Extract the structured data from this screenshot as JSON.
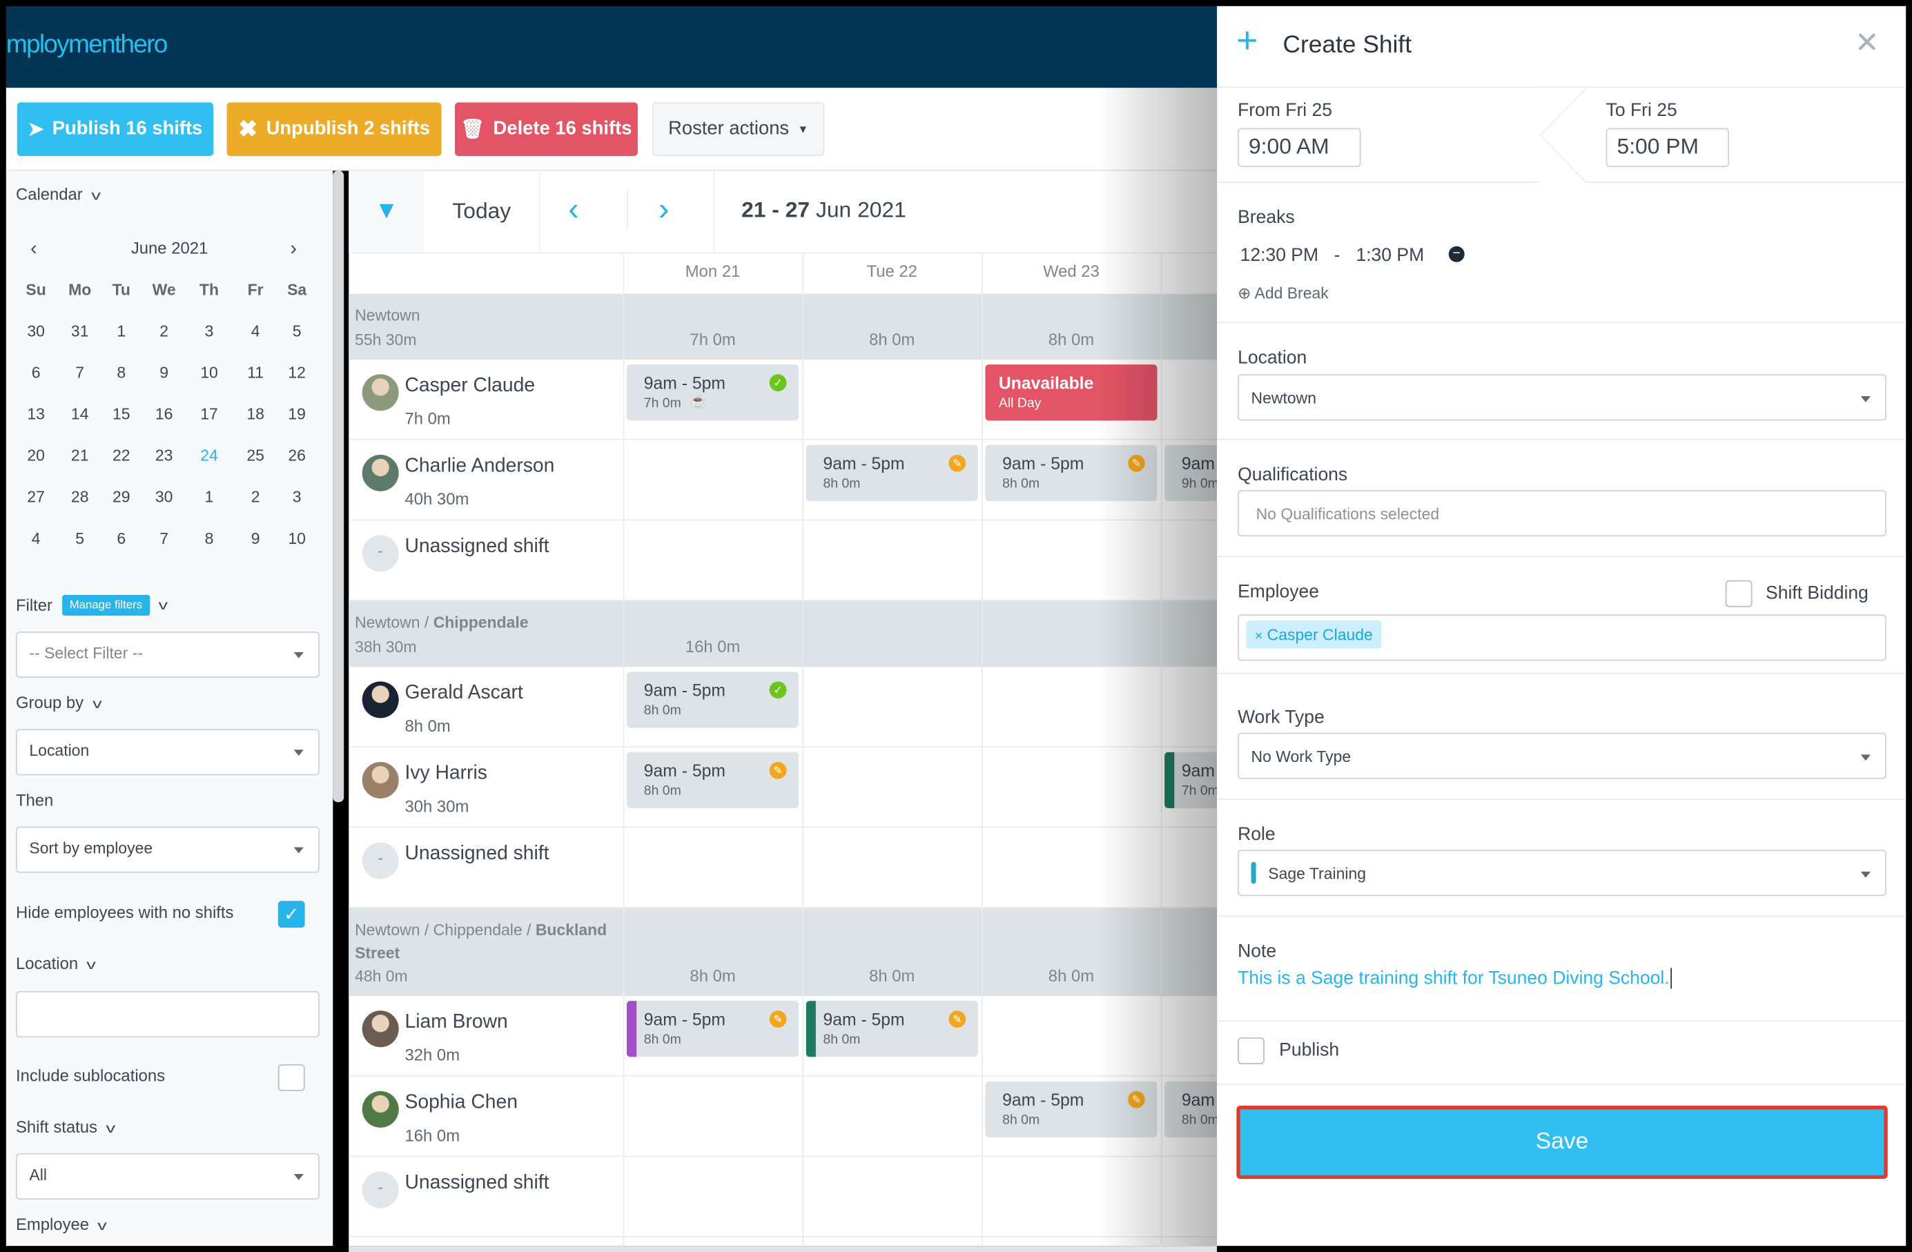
{
  "app": {
    "logo": "mploymenthero"
  },
  "toolbar": {
    "publish": "Publish 16 shifts",
    "unpublish": "Unpublish 2 shifts",
    "delete": "Delete 16 shifts",
    "roster_actions": "Roster actions"
  },
  "colors": {
    "publish": "#30bff0",
    "unpublish": "#ecac28",
    "delete": "#e35466",
    "header": "#023453",
    "accent": "#27b4ea",
    "published": "#6cc51c",
    "unpublished": "#f0a71e"
  },
  "sidebar": {
    "calendar_label": "Calendar",
    "month": "June 2021",
    "weekdays": [
      "Su",
      "Mo",
      "Tu",
      "We",
      "Th",
      "Fr",
      "Sa"
    ],
    "weeks": [
      [
        "30",
        "31",
        "1",
        "2",
        "3",
        "4",
        "5"
      ],
      [
        "6",
        "7",
        "8",
        "9",
        "10",
        "11",
        "12"
      ],
      [
        "13",
        "14",
        "15",
        "16",
        "17",
        "18",
        "19"
      ],
      [
        "20",
        "21",
        "22",
        "23",
        "24",
        "25",
        "26"
      ],
      [
        "27",
        "28",
        "29",
        "30",
        "1",
        "2",
        "3"
      ],
      [
        "4",
        "5",
        "6",
        "7",
        "8",
        "9",
        "10"
      ]
    ],
    "today": "24",
    "filter_label": "Filter",
    "manage_filters": "Manage filters",
    "filter_value": "-- Select Filter --",
    "group_by_label": "Group by",
    "group_by_value": "Location",
    "then_label": "Then",
    "then_value": "Sort by employee",
    "hide_label": "Hide employees with no shifts",
    "hide_checked": true,
    "location_label": "Location",
    "location_value": "",
    "include_sub_label": "Include sublocations",
    "include_sub_checked": false,
    "shift_status_label": "Shift status",
    "shift_status_value": "All",
    "employee_label": "Employee"
  },
  "roster": {
    "today": "Today",
    "range_bold": "21 - 27",
    "range_rest": "Jun 2021",
    "days": [
      "Mon 21",
      "Tue 22",
      "Wed 23"
    ],
    "groups": [
      {
        "path": "Newtown",
        "bold": "",
        "total": "55h 30m",
        "day_totals": [
          "7h 0m",
          "8h 0m",
          "8h 0m"
        ],
        "rows": [
          {
            "name": "Casper Claude",
            "hours": "7h 0m",
            "avatar": "#8a9a7a",
            "shifts": [
              {
                "day": 0,
                "time": "9am - 5pm",
                "dur": "7h 0m",
                "status": "published",
                "break": true
              },
              {
                "day": 2,
                "unavailable": "Unavailable",
                "sub": "All Day"
              }
            ]
          },
          {
            "name": "Charlie Anderson",
            "hours": "40h 30m",
            "avatar": "#5d7a6a",
            "shifts": [
              {
                "day": 1,
                "time": "9am - 5pm",
                "dur": "8h 0m",
                "status": "unpublished"
              },
              {
                "day": 2,
                "time": "9am - 5pm",
                "dur": "8h 0m",
                "status": "unpublished"
              },
              {
                "day": 3,
                "time": "9am",
                "dur": "9h 0m"
              }
            ]
          },
          {
            "name": "Unassigned shift",
            "unassigned": true,
            "shifts": []
          }
        ]
      },
      {
        "path": "Newtown / ",
        "bold": "Chippendale",
        "total": "38h 30m",
        "day_totals": [
          "16h 0m",
          "",
          ""
        ],
        "rows": [
          {
            "name": "Gerald Ascart",
            "hours": "8h 0m",
            "avatar": "#1a2233",
            "shifts": [
              {
                "day": 0,
                "time": "9am - 5pm",
                "dur": "8h 0m",
                "status": "published"
              }
            ]
          },
          {
            "name": "Ivy Harris",
            "hours": "30h 30m",
            "avatar": "#9a8068",
            "shifts": [
              {
                "day": 0,
                "time": "9am - 5pm",
                "dur": "8h 0m",
                "status": "unpublished"
              },
              {
                "day": 3,
                "time": "9am",
                "dur": "7h 0m",
                "bar": "#1f7a63"
              }
            ]
          },
          {
            "name": "Unassigned shift",
            "unassigned": true,
            "shifts": []
          }
        ]
      },
      {
        "path": "Newtown / Chippendale / ",
        "bold": "Buckland",
        "path2": "Street",
        "total": "48h 0m",
        "day_totals": [
          "8h 0m",
          "8h 0m",
          "8h 0m"
        ],
        "rows": [
          {
            "name": "Liam Brown",
            "hours": "32h 0m",
            "avatar": "#6a5a50",
            "shifts": [
              {
                "day": 0,
                "time": "9am - 5pm",
                "dur": "8h 0m",
                "status": "unpublished",
                "bar": "#a04fc4"
              },
              {
                "day": 1,
                "time": "9am - 5pm",
                "dur": "8h 0m",
                "status": "unpublished",
                "bar": "#1f7a63"
              }
            ]
          },
          {
            "name": "Sophia Chen",
            "hours": "16h 0m",
            "avatar": "#4f7a45",
            "shifts": [
              {
                "day": 2,
                "time": "9am - 5pm",
                "dur": "8h 0m",
                "status": "unpublished"
              },
              {
                "day": 3,
                "time": "9am",
                "dur": "8h 0m"
              }
            ]
          },
          {
            "name": "Unassigned shift",
            "unassigned": true,
            "shifts": []
          }
        ]
      }
    ]
  },
  "panel": {
    "title": "Create Shift",
    "from_label": "From Fri 25",
    "from_value": "9:00 AM",
    "to_label": "To Fri 25",
    "to_value": "5:00 PM",
    "breaks_label": "Breaks",
    "break_start": "12:30 PM",
    "break_dash": "-",
    "break_end": "1:30 PM",
    "add_break": "Add Break",
    "location_label": "Location",
    "location_value": "Newtown",
    "qual_label": "Qualifications",
    "qual_placeholder": "No Qualifications selected",
    "employee_label": "Employee",
    "shift_bidding": "Shift Bidding",
    "employee_tag": "Casper Claude",
    "work_type_label": "Work Type",
    "work_type_value": "No Work Type",
    "role_label": "Role",
    "role_value": "Sage Training",
    "note_label": "Note",
    "note_value": "This is a Sage training shift for Tsuneo Diving School.",
    "publish_label": "Publish",
    "save": "Save"
  }
}
